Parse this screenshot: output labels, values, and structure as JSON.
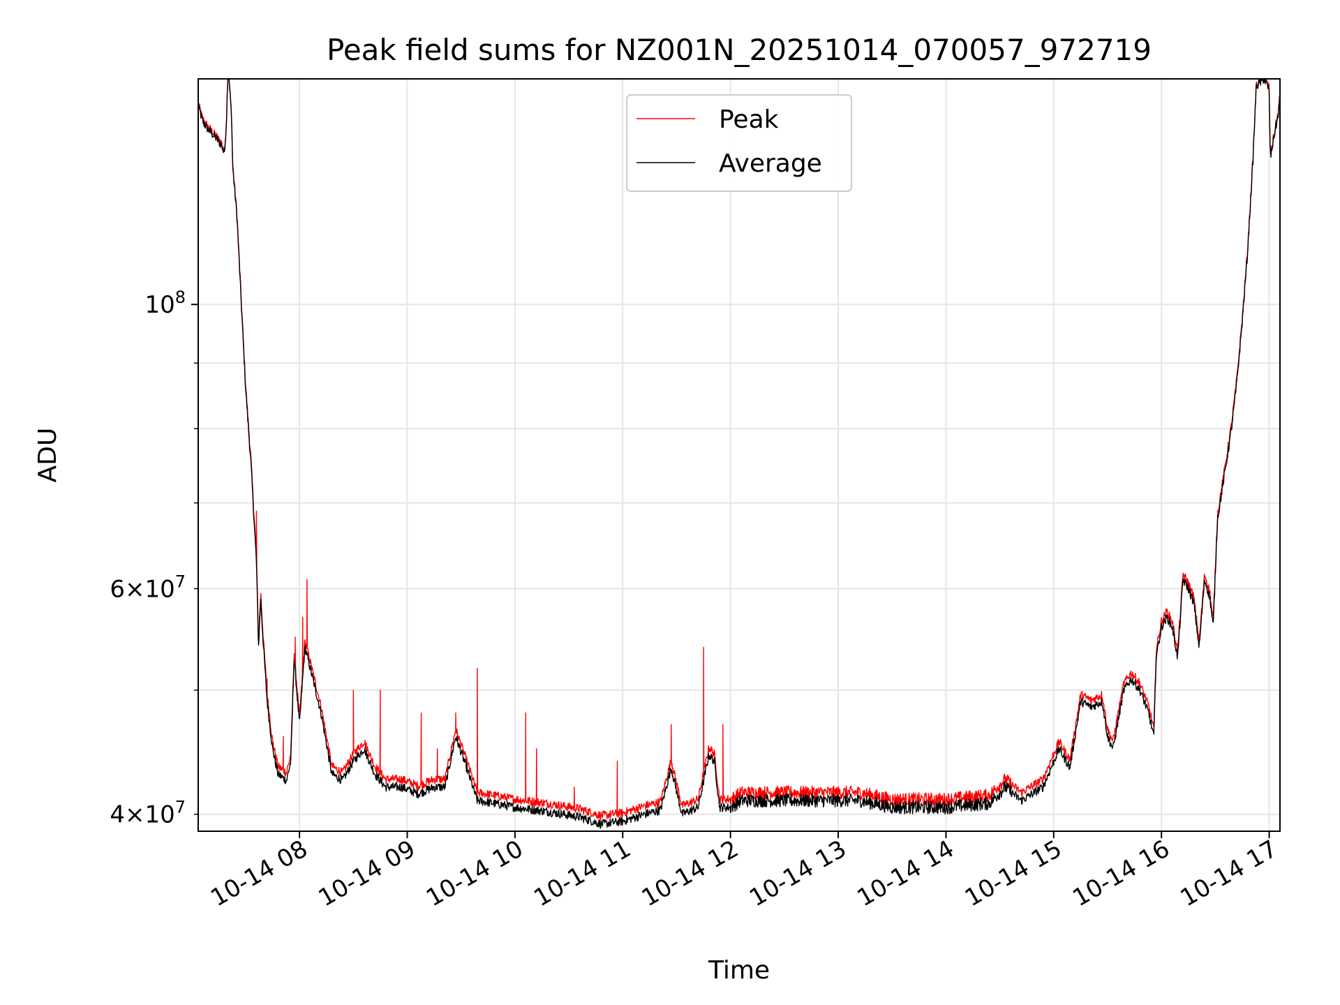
{
  "chart_data": {
    "type": "line",
    "title": "Peak field sums for NZ001N_20251014_070057_972719",
    "xlabel": "Time",
    "ylabel": "ADU",
    "yscale": "log",
    "grid": true,
    "legend_position": "upper-center",
    "xlim_hours": [
      7.06,
      17.1
    ],
    "ylim": [
      38800000,
      150000000
    ],
    "x_ticks": [
      {
        "hour": 8,
        "label": "10-14 08"
      },
      {
        "hour": 9,
        "label": "10-14 09"
      },
      {
        "hour": 10,
        "label": "10-14 10"
      },
      {
        "hour": 11,
        "label": "10-14 11"
      },
      {
        "hour": 12,
        "label": "10-14 12"
      },
      {
        "hour": 13,
        "label": "10-14 13"
      },
      {
        "hour": 14,
        "label": "10-14 14"
      },
      {
        "hour": 15,
        "label": "10-14 15"
      },
      {
        "hour": 16,
        "label": "10-14 16"
      },
      {
        "hour": 17,
        "label": "10-14 17"
      }
    ],
    "y_major_ticks": [
      {
        "value": 100000000,
        "base": "10",
        "exp": "8"
      }
    ],
    "y_minor_ticks": [
      {
        "value": 40000000,
        "mant": "4",
        "base": "10",
        "exp": "7",
        "labeled": true
      },
      {
        "value": 50000000,
        "labeled": false
      },
      {
        "value": 60000000,
        "mant": "6",
        "base": "10",
        "exp": "7",
        "labeled": true
      },
      {
        "value": 70000000,
        "labeled": false
      },
      {
        "value": 80000000,
        "labeled": false
      },
      {
        "value": 90000000,
        "labeled": false
      }
    ],
    "series": [
      {
        "name": "Peak",
        "color": "#ff0000",
        "offset": 600000,
        "spikes": [
          [
            7.6,
            69000000.0
          ],
          [
            7.7,
            51000000.0
          ],
          [
            7.85,
            46000000.0
          ],
          [
            7.96,
            55000000.0
          ],
          [
            8.03,
            57000000.0
          ],
          [
            8.07,
            61000000.0
          ],
          [
            8.5,
            50000000.0
          ],
          [
            8.75,
            50000000.0
          ],
          [
            9.13,
            48000000.0
          ],
          [
            9.28,
            45000000.0
          ],
          [
            9.45,
            48000000.0
          ],
          [
            9.65,
            52000000.0
          ],
          [
            10.1,
            48000000.0
          ],
          [
            10.2,
            45000000.0
          ],
          [
            10.55,
            42000000.0
          ],
          [
            10.95,
            44000000.0
          ],
          [
            11.45,
            47000000.0
          ],
          [
            11.75,
            54000000.0
          ],
          [
            11.93,
            47000000.0
          ]
        ]
      },
      {
        "name": "Average",
        "color": "#000000",
        "offset": 0,
        "spikes": []
      }
    ],
    "average_series_anchors": [
      [
        7.06,
        143000000.0
      ],
      [
        7.1,
        139000000.0
      ],
      [
        7.15,
        137000000.0
      ],
      [
        7.22,
        135000000.0
      ],
      [
        7.28,
        133000000.0
      ],
      [
        7.3,
        131000000.0
      ],
      [
        7.32,
        137000000.0
      ],
      [
        7.33,
        147000000.0
      ],
      [
        7.34,
        152000000.0
      ],
      [
        7.35,
        148000000.0
      ],
      [
        7.37,
        140000000.0
      ],
      [
        7.38,
        128000000.0
      ],
      [
        7.42,
        117000000.0
      ],
      [
        7.46,
        100000000.0
      ],
      [
        7.5,
        86000000.0
      ],
      [
        7.55,
        75000000.0
      ],
      [
        7.6,
        63000000.0
      ],
      [
        7.62,
        54000000.0
      ],
      [
        7.64,
        59000000.0
      ],
      [
        7.66,
        55000000.0
      ],
      [
        7.7,
        49000000.0
      ],
      [
        7.75,
        45000000.0
      ],
      [
        7.8,
        43000000.0
      ],
      [
        7.88,
        42500000.0
      ],
      [
        7.92,
        44000000.0
      ],
      [
        7.95,
        53000000.0
      ],
      [
        8.0,
        47000000.0
      ],
      [
        8.05,
        54000000.0
      ],
      [
        8.1,
        52000000.0
      ],
      [
        8.2,
        48000000.0
      ],
      [
        8.3,
        43000000.0
      ],
      [
        8.4,
        42500000.0
      ],
      [
        8.5,
        44000000.0
      ],
      [
        8.6,
        45000000.0
      ],
      [
        8.7,
        43000000.0
      ],
      [
        8.8,
        42000000.0
      ],
      [
        8.95,
        42000000.0
      ],
      [
        9.1,
        41500000.0
      ],
      [
        9.25,
        42000000.0
      ],
      [
        9.35,
        42000000.0
      ],
      [
        9.45,
        46000000.0
      ],
      [
        9.55,
        43500000.0
      ],
      [
        9.65,
        41000000.0
      ],
      [
        9.8,
        40800000.0
      ],
      [
        10.0,
        40500000.0
      ],
      [
        10.3,
        40200000.0
      ],
      [
        10.6,
        39800000.0
      ],
      [
        10.8,
        39300000.0
      ],
      [
        11.0,
        39500000.0
      ],
      [
        11.2,
        40000000.0
      ],
      [
        11.35,
        40300000.0
      ],
      [
        11.45,
        43500000.0
      ],
      [
        11.55,
        40000000.0
      ],
      [
        11.7,
        40500000.0
      ],
      [
        11.8,
        44500000.0
      ],
      [
        11.85,
        44000000.0
      ],
      [
        11.9,
        40500000.0
      ],
      [
        12.0,
        40500000.0
      ],
      [
        12.1,
        41000000.0
      ],
      [
        12.5,
        41000000.0
      ],
      [
        13.0,
        41000000.0
      ],
      [
        13.2,
        41000000.0
      ],
      [
        13.5,
        40500000.0
      ],
      [
        14.0,
        40500000.0
      ],
      [
        14.4,
        40800000.0
      ],
      [
        14.55,
        42000000.0
      ],
      [
        14.7,
        41000000.0
      ],
      [
        14.9,
        42000000.0
      ],
      [
        15.05,
        45000000.0
      ],
      [
        15.15,
        43500000.0
      ],
      [
        15.25,
        49000000.0
      ],
      [
        15.35,
        48500000.0
      ],
      [
        15.45,
        49000000.0
      ],
      [
        15.5,
        46000000.0
      ],
      [
        15.55,
        45000000.0
      ],
      [
        15.65,
        50000000.0
      ],
      [
        15.72,
        51000000.0
      ],
      [
        15.8,
        50000000.0
      ],
      [
        15.88,
        48000000.0
      ],
      [
        15.93,
        46000000.0
      ],
      [
        15.95,
        53000000.0
      ],
      [
        16.0,
        56000000.0
      ],
      [
        16.05,
        57000000.0
      ],
      [
        16.1,
        56000000.0
      ],
      [
        16.15,
        53000000.0
      ],
      [
        16.2,
        61000000.0
      ],
      [
        16.25,
        60000000.0
      ],
      [
        16.3,
        58500000.0
      ],
      [
        16.35,
        54000000.0
      ],
      [
        16.4,
        61000000.0
      ],
      [
        16.45,
        59000000.0
      ],
      [
        16.48,
        56000000.0
      ],
      [
        16.52,
        68000000.0
      ],
      [
        16.6,
        75000000.0
      ],
      [
        16.65,
        80000000.0
      ],
      [
        16.7,
        87000000.0
      ],
      [
        16.75,
        97000000.0
      ],
      [
        16.8,
        110000000.0
      ],
      [
        16.85,
        130000000.0
      ],
      [
        16.88,
        148000000.0
      ],
      [
        16.95,
        150000000.0
      ],
      [
        17.0,
        147000000.0
      ],
      [
        17.01,
        130000000.0
      ],
      [
        17.05,
        136000000.0
      ],
      [
        17.08,
        140000000.0
      ],
      [
        17.1,
        145000000.0
      ]
    ]
  }
}
